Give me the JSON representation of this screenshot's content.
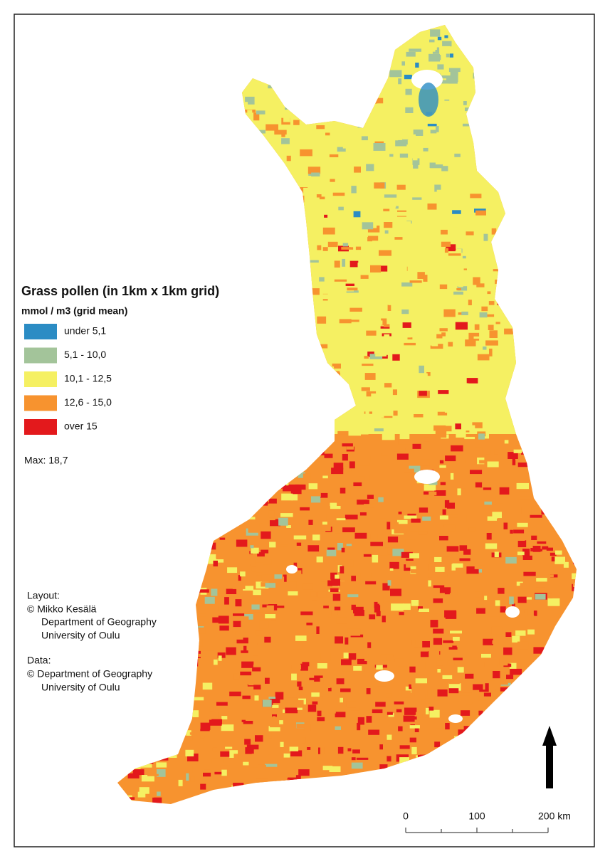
{
  "title": "Grass pollen (in 1km x 1km grid)",
  "subtitle": "mmol / m3 (grid mean)",
  "legend": [
    {
      "label": "under 5,1",
      "color": "#2b8cc4"
    },
    {
      "label": "5,1 - 10,0",
      "color": "#a3c49a"
    },
    {
      "label": "10,1 - 12,5",
      "color": "#f5f062"
    },
    {
      "label": "12,6 - 15,0",
      "color": "#f7932f"
    },
    {
      "label": "over 15",
      "color": "#e3191c"
    }
  ],
  "max_label": "Max: 18,7",
  "credits": {
    "layout": {
      "heading": "Layout:",
      "lines": [
        "© Mikko Kesälä",
        "Department of Geography",
        "University of Oulu"
      ]
    },
    "data": {
      "heading": "Data:",
      "lines": [
        "© Department of Geography",
        "University of Oulu"
      ]
    }
  },
  "scale_bar": {
    "labels": [
      "0",
      "100",
      "200 km"
    ]
  }
}
